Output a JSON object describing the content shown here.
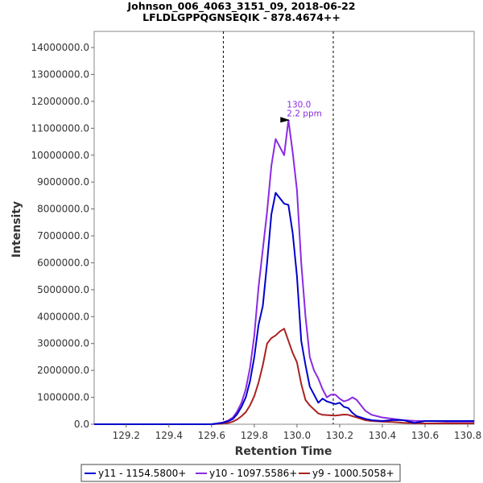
{
  "chart_data": {
    "type": "line",
    "title": "Johnson_006_4063_3151_09, 2018-06-22",
    "subtitle": "LFLDLGPPQGNSEQIK - 878.4674++",
    "xlabel": "Retention Time",
    "ylabel": "Intensity",
    "xlim": [
      129.05,
      130.83
    ],
    "ylim": [
      0,
      14600000
    ],
    "x_ticks": [
      129.2,
      129.4,
      129.6,
      129.8,
      130.0,
      130.2,
      130.4,
      130.6,
      130.8
    ],
    "x_tick_labels": [
      "129.2",
      "129.4",
      "129.6",
      "129.8",
      "130.0",
      "130.2",
      "130.4",
      "130.6",
      "130.8"
    ],
    "y_ticks": [
      0,
      1000000,
      2000000,
      3000000,
      4000000,
      5000000,
      6000000,
      7000000,
      8000000,
      9000000,
      10000000,
      11000000,
      12000000,
      13000000,
      14000000
    ],
    "y_tick_labels": [
      "0.0",
      "1000000.0",
      "2000000.0",
      "3000000.0",
      "4000000.0",
      "5000000.0",
      "6000000.0",
      "7000000.0",
      "8000000.0",
      "9000000.0",
      "10000000.0",
      "11000000.0",
      "12000000.0",
      "13000000.0",
      "14000000.0"
    ],
    "boundaries": [
      129.655,
      130.17
    ],
    "annotation": {
      "x": 129.975,
      "y": 11300000,
      "line1": "130.0",
      "line2": "2.2 ppm",
      "color": "#8a2be2"
    },
    "series": [
      {
        "name": "y11 - 1154.5800+",
        "color": "#0000cc",
        "x": [
          129.05,
          129.1,
          129.2,
          129.3,
          129.4,
          129.5,
          129.6,
          129.65,
          129.68,
          129.7,
          129.72,
          129.74,
          129.76,
          129.78,
          129.8,
          129.82,
          129.84,
          129.86,
          129.88,
          129.9,
          129.92,
          129.94,
          129.96,
          129.98,
          130.0,
          130.02,
          130.04,
          130.06,
          130.08,
          130.1,
          130.12,
          130.14,
          130.16,
          130.18,
          130.2,
          130.22,
          130.24,
          130.26,
          130.28,
          130.3,
          130.32,
          130.35,
          130.4,
          130.45,
          130.5,
          130.55,
          130.6,
          130.65,
          130.7,
          130.75,
          130.8,
          130.83
        ],
        "values": [
          0,
          0,
          0,
          0,
          0,
          0,
          0,
          50000,
          120000,
          200000,
          380000,
          650000,
          1000000,
          1600000,
          2500000,
          3700000,
          4400000,
          6000000,
          7800000,
          8600000,
          8400000,
          8200000,
          8150000,
          7100000,
          5500000,
          3100000,
          2200000,
          1400000,
          1100000,
          800000,
          950000,
          850000,
          800000,
          750000,
          800000,
          650000,
          600000,
          420000,
          300000,
          250000,
          200000,
          150000,
          120000,
          160000,
          150000,
          50000,
          120000,
          120000,
          120000,
          120000,
          120000,
          120000
        ]
      },
      {
        "name": "y10 - 1097.5586+",
        "color": "#8a2be2",
        "x": [
          129.05,
          129.1,
          129.2,
          129.3,
          129.4,
          129.5,
          129.6,
          129.65,
          129.68,
          129.7,
          129.72,
          129.74,
          129.76,
          129.78,
          129.8,
          129.82,
          129.84,
          129.86,
          129.88,
          129.9,
          129.92,
          129.94,
          129.96,
          129.98,
          130.0,
          130.02,
          130.04,
          130.06,
          130.08,
          130.1,
          130.12,
          130.14,
          130.16,
          130.18,
          130.2,
          130.22,
          130.24,
          130.26,
          130.28,
          130.3,
          130.32,
          130.35,
          130.4,
          130.45,
          130.5,
          130.55,
          130.6,
          130.65,
          130.7,
          130.75,
          130.8,
          130.83
        ],
        "values": [
          0,
          0,
          0,
          0,
          0,
          0,
          0,
          60000,
          150000,
          250000,
          480000,
          800000,
          1300000,
          2100000,
          3300000,
          5100000,
          6500000,
          7900000,
          9600000,
          10600000,
          10300000,
          10000000,
          11300000,
          10100000,
          8700000,
          6000000,
          4000000,
          2500000,
          2000000,
          1700000,
          1300000,
          1000000,
          1100000,
          1100000,
          950000,
          850000,
          900000,
          1000000,
          900000,
          700000,
          500000,
          350000,
          250000,
          200000,
          150000,
          130000,
          120000,
          110000,
          100000,
          100000,
          100000,
          100000
        ]
      },
      {
        "name": "y9 - 1000.5058+",
        "color": "#aa2222",
        "x": [
          129.05,
          129.1,
          129.2,
          129.3,
          129.4,
          129.5,
          129.6,
          129.65,
          129.68,
          129.7,
          129.72,
          129.74,
          129.76,
          129.78,
          129.8,
          129.82,
          129.84,
          129.86,
          129.88,
          129.9,
          129.92,
          129.94,
          129.96,
          129.98,
          130.0,
          130.02,
          130.04,
          130.06,
          130.08,
          130.1,
          130.12,
          130.14,
          130.16,
          130.18,
          130.2,
          130.22,
          130.24,
          130.26,
          130.28,
          130.3,
          130.32,
          130.35,
          130.4,
          130.45,
          130.5,
          130.55,
          130.6,
          130.65,
          130.7,
          130.75,
          130.8,
          130.83
        ],
        "values": [
          0,
          0,
          0,
          0,
          0,
          0,
          0,
          20000,
          50000,
          100000,
          180000,
          300000,
          450000,
          700000,
          1050000,
          1550000,
          2200000,
          3000000,
          3200000,
          3300000,
          3450000,
          3550000,
          3100000,
          2650000,
          2300000,
          1500000,
          900000,
          700000,
          550000,
          400000,
          350000,
          340000,
          330000,
          320000,
          340000,
          360000,
          350000,
          300000,
          250000,
          200000,
          150000,
          120000,
          100000,
          80000,
          50000,
          40000,
          30000,
          30000,
          30000,
          30000,
          30000,
          30000
        ]
      }
    ]
  }
}
